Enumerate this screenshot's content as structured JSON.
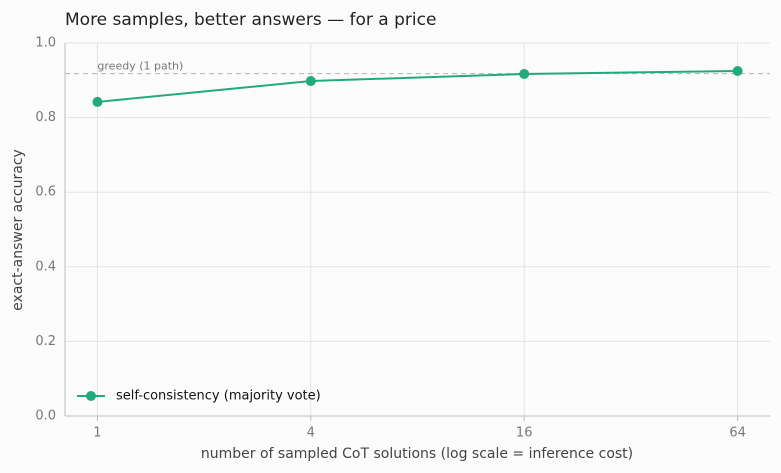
{
  "chart_data": {
    "type": "line",
    "title": "More samples, better answers — for a price",
    "x_label": "number of sampled CoT solutions (log scale = inference cost)",
    "y_label": "exact-answer accuracy",
    "x": [
      1,
      4,
      16,
      64
    ],
    "series": [
      {
        "name": "self-consistency (majority vote)",
        "color": "#22ab7a",
        "values": [
          0.842,
          0.898,
          0.917,
          0.925
        ]
      }
    ],
    "reference_lines": [
      {
        "value": 0.918,
        "label": "greedy (1 path)",
        "color": "#bbbbbb"
      }
    ],
    "xlim": [
      0.81,
      79
    ],
    "xscale": "log",
    "xticks": [
      1,
      4,
      16,
      64
    ],
    "ylim": [
      0,
      1
    ],
    "yticks": [
      {
        "value": 0,
        "label": "0.0"
      },
      0.2,
      0.4,
      0.6,
      0.8,
      {
        "value": 1,
        "label": "1.0"
      }
    ],
    "grid": true,
    "legend": "lower left"
  }
}
